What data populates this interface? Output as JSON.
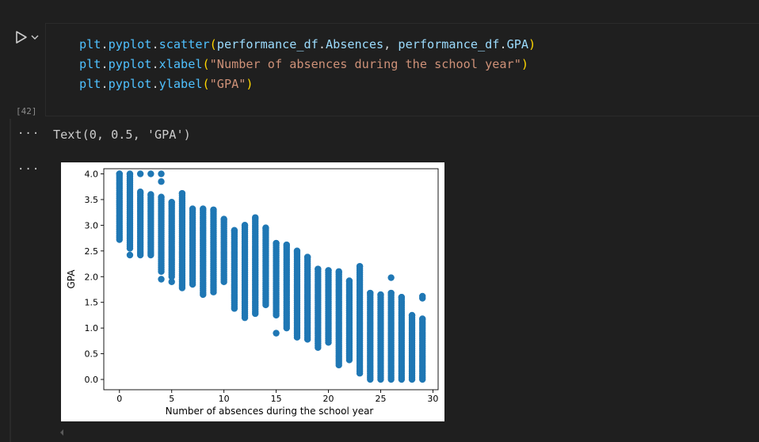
{
  "cell": {
    "execution_count": "[42]",
    "code": {
      "line1": {
        "obj": "plt",
        "dot1": ".",
        "mod": "pyplot",
        "dot2": ".",
        "fn": "scatter",
        "lp": "(",
        "arg1a": "performance_df",
        "arg1d": ".",
        "arg1b": "Absences",
        "sep": ", ",
        "arg2a": "performance_df",
        "arg2d": ".",
        "arg2b": "GPA",
        "rp": ")"
      },
      "line2": {
        "obj": "plt",
        "dot1": ".",
        "mod": "pyplot",
        "dot2": ".",
        "fn": "xlabel",
        "lp": "(",
        "str": "\"Number of absences during the school year\"",
        "rp": ")"
      },
      "line3": {
        "obj": "plt",
        "dot1": ".",
        "mod": "pyplot",
        "dot2": ".",
        "fn": "ylabel",
        "lp": "(",
        "str": "\"GPA\"",
        "rp": ")"
      }
    }
  },
  "outputs": {
    "more_label": "···",
    "text_output": "Text(0, 0.5, 'GPA')"
  },
  "icons": {
    "run": "run-icon",
    "chevron": "chevron-down-icon",
    "scroll_left": "scroll-left-icon"
  },
  "colors": {
    "background": "#1f1f1f",
    "scatter": "#1f77b4"
  },
  "chart_data": {
    "type": "scatter",
    "xlabel": "Number of absences during the school year",
    "ylabel": "GPA",
    "xlim": [
      -1.5,
      30.5
    ],
    "ylim": [
      -0.2,
      4.1
    ],
    "xticks": [
      0,
      5,
      10,
      15,
      20,
      25,
      30
    ],
    "yticks": [
      0.0,
      0.5,
      1.0,
      1.5,
      2.0,
      2.5,
      3.0,
      3.5,
      4.0
    ],
    "ytick_labels": [
      "0.0",
      "0.5",
      "1.0",
      "1.5",
      "2.0",
      "2.5",
      "3.0",
      "3.5",
      "4.0"
    ],
    "grid": false,
    "columns": [
      {
        "x": 0,
        "min": 2.72,
        "max": 4.0,
        "outliers": []
      },
      {
        "x": 1,
        "min": 2.55,
        "max": 4.0,
        "outliers": [
          2.42
        ]
      },
      {
        "x": 2,
        "min": 2.42,
        "max": 3.65,
        "outliers": [
          4.0
        ]
      },
      {
        "x": 3,
        "min": 2.42,
        "max": 3.6,
        "outliers": [
          4.0
        ]
      },
      {
        "x": 4,
        "min": 2.1,
        "max": 3.55,
        "outliers": [
          4.0,
          3.85,
          1.95
        ]
      },
      {
        "x": 5,
        "min": 2.0,
        "max": 3.45,
        "outliers": [
          1.9
        ]
      },
      {
        "x": 6,
        "min": 1.78,
        "max": 3.62,
        "outliers": []
      },
      {
        "x": 7,
        "min": 1.85,
        "max": 3.32,
        "outliers": []
      },
      {
        "x": 8,
        "min": 1.65,
        "max": 3.32,
        "outliers": []
      },
      {
        "x": 9,
        "min": 1.7,
        "max": 3.3,
        "outliers": []
      },
      {
        "x": 10,
        "min": 1.9,
        "max": 3.12,
        "outliers": []
      },
      {
        "x": 11,
        "min": 1.38,
        "max": 2.9,
        "outliers": []
      },
      {
        "x": 12,
        "min": 1.2,
        "max": 3.0,
        "outliers": []
      },
      {
        "x": 13,
        "min": 1.28,
        "max": 3.15,
        "outliers": []
      },
      {
        "x": 14,
        "min": 1.45,
        "max": 2.95,
        "outliers": []
      },
      {
        "x": 15,
        "min": 1.25,
        "max": 2.65,
        "outliers": [
          0.9
        ]
      },
      {
        "x": 16,
        "min": 1.0,
        "max": 2.62,
        "outliers": []
      },
      {
        "x": 17,
        "min": 0.82,
        "max": 2.5,
        "outliers": []
      },
      {
        "x": 18,
        "min": 0.78,
        "max": 2.38,
        "outliers": []
      },
      {
        "x": 19,
        "min": 0.62,
        "max": 2.15,
        "outliers": []
      },
      {
        "x": 20,
        "min": 0.72,
        "max": 2.12,
        "outliers": []
      },
      {
        "x": 21,
        "min": 0.28,
        "max": 2.1,
        "outliers": []
      },
      {
        "x": 22,
        "min": 0.38,
        "max": 1.92,
        "outliers": []
      },
      {
        "x": 23,
        "min": 0.12,
        "max": 2.2,
        "outliers": []
      },
      {
        "x": 24,
        "min": 0.0,
        "max": 1.68,
        "outliers": []
      },
      {
        "x": 25,
        "min": 0.0,
        "max": 1.65,
        "outliers": []
      },
      {
        "x": 26,
        "min": 0.0,
        "max": 1.68,
        "outliers": [
          1.98
        ]
      },
      {
        "x": 27,
        "min": 0.0,
        "max": 1.6,
        "outliers": []
      },
      {
        "x": 28,
        "min": 0.0,
        "max": 1.25,
        "outliers": []
      },
      {
        "x": 29,
        "min": 0.0,
        "max": 1.18,
        "outliers": [
          1.58,
          1.62
        ]
      }
    ]
  }
}
